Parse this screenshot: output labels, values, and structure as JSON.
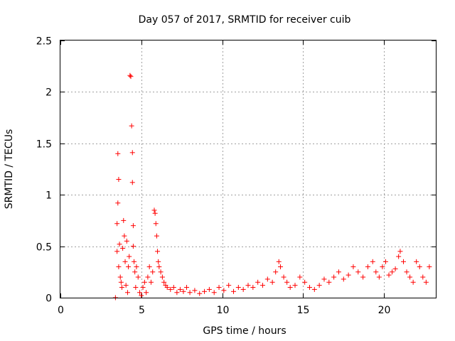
{
  "chart_data": {
    "type": "scatter",
    "title": "Day 057 of 2017, SRMTID for receiver cuib",
    "xlabel": "GPS time / hours",
    "ylabel": "SRMTID / TECUs",
    "xlim": [
      0,
      23.2
    ],
    "ylim": [
      0,
      2.5
    ],
    "xticks": [
      0,
      5,
      10,
      15,
      20
    ],
    "yticks": [
      0,
      0.5,
      1,
      1.5,
      2,
      2.5
    ],
    "xtick_labels": [
      "0",
      "5",
      "10",
      "15",
      "20"
    ],
    "ytick_labels": [
      "0",
      "0.5",
      "1",
      "1.5",
      "2",
      "2.5"
    ],
    "grid": true,
    "marker": "+",
    "color": "#ff0000",
    "series": [
      {
        "name": "SRMTID",
        "x": [
          3.4,
          3.5,
          3.5,
          3.55,
          3.55,
          3.6,
          3.6,
          3.65,
          3.7,
          3.75,
          3.8,
          3.85,
          3.9,
          3.95,
          4.0,
          4.05,
          4.1,
          4.15,
          4.2,
          4.25,
          4.3,
          4.35,
          4.4,
          4.45,
          4.45,
          4.5,
          4.5,
          4.55,
          4.6,
          4.65,
          4.7,
          4.8,
          4.9,
          5.0,
          5.1,
          5.2,
          5.3,
          5.4,
          5.5,
          5.6,
          5.7,
          5.8,
          5.85,
          5.9,
          5.95,
          6.0,
          6.05,
          6.1,
          6.2,
          6.3,
          6.4,
          6.5,
          6.6,
          6.8,
          7.0,
          7.2,
          7.4,
          7.6,
          7.8,
          8.0,
          8.3,
          8.6,
          8.9,
          9.2,
          9.5,
          9.8,
          10.1,
          10.4,
          10.7,
          11.0,
          11.3,
          11.6,
          11.9,
          12.2,
          12.5,
          12.8,
          13.1,
          13.3,
          13.5,
          13.6,
          13.8,
          14.0,
          14.2,
          14.5,
          14.8,
          15.1,
          15.4,
          15.7,
          16.0,
          16.3,
          16.6,
          16.9,
          17.2,
          17.5,
          17.8,
          18.1,
          18.4,
          18.7,
          19.0,
          19.3,
          19.5,
          19.7,
          19.9,
          20.1,
          20.3,
          20.5,
          20.7,
          20.9,
          21.0,
          21.2,
          21.4,
          21.6,
          21.8,
          22.0,
          22.2,
          22.4,
          22.6,
          22.8
        ],
        "values": [
          0.0,
          0.45,
          0.72,
          0.92,
          1.4,
          1.15,
          0.3,
          0.52,
          0.2,
          0.15,
          0.1,
          0.48,
          0.75,
          0.6,
          0.35,
          0.12,
          0.55,
          0.05,
          0.3,
          0.4,
          2.16,
          2.15,
          1.67,
          1.41,
          1.12,
          0.7,
          0.5,
          0.35,
          0.25,
          0.1,
          0.3,
          0.2,
          0.05,
          0.02,
          0.1,
          0.15,
          0.05,
          0.2,
          0.3,
          0.15,
          0.25,
          0.85,
          0.82,
          0.72,
          0.6,
          0.45,
          0.35,
          0.3,
          0.25,
          0.2,
          0.15,
          0.12,
          0.1,
          0.08,
          0.1,
          0.05,
          0.08,
          0.06,
          0.1,
          0.05,
          0.07,
          0.04,
          0.06,
          0.08,
          0.05,
          0.1,
          0.07,
          0.12,
          0.06,
          0.1,
          0.08,
          0.12,
          0.1,
          0.15,
          0.12,
          0.18,
          0.15,
          0.25,
          0.35,
          0.3,
          0.2,
          0.15,
          0.1,
          0.12,
          0.2,
          0.15,
          0.1,
          0.08,
          0.12,
          0.18,
          0.15,
          0.2,
          0.25,
          0.18,
          0.22,
          0.3,
          0.25,
          0.2,
          0.3,
          0.35,
          0.25,
          0.2,
          0.3,
          0.35,
          0.22,
          0.25,
          0.28,
          0.4,
          0.45,
          0.35,
          0.25,
          0.2,
          0.15,
          0.35,
          0.3,
          0.2,
          0.15,
          0.3
        ]
      }
    ]
  }
}
